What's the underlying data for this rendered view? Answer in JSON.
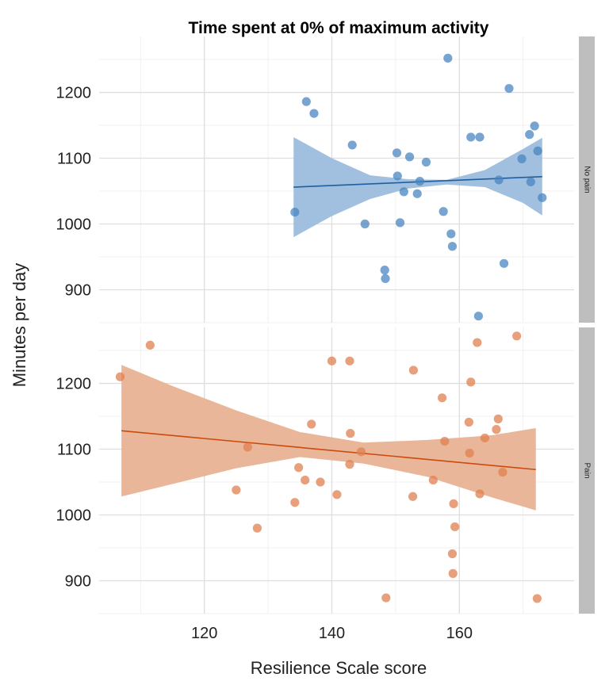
{
  "chart_data": {
    "type": "scatter",
    "title": "Time spent at 0% of maximum activity",
    "xlabel": "Resilience Scale score",
    "ylabel": "Minutes per day",
    "xlim": [
      103.5,
      178
    ],
    "x_ticks": [
      120,
      140,
      160
    ],
    "y_ticks": [
      900,
      1000,
      1100,
      1200
    ],
    "grid": true,
    "facets": [
      {
        "label": "No pain",
        "ylim": [
          850,
          1285
        ],
        "color": "#4a86c0",
        "line_color": "#1f5fa0",
        "ribbon_color": "#9cbcdc",
        "fit": {
          "x0": 134,
          "y0": 1056,
          "x1": 173,
          "y1": 1072
        },
        "band_lower": [
          [
            134,
            980
          ],
          [
            140,
            1012
          ],
          [
            146,
            1038
          ],
          [
            152,
            1054
          ],
          [
            158,
            1060
          ],
          [
            164,
            1056
          ],
          [
            170,
            1032
          ],
          [
            173,
            1013
          ]
        ],
        "band_upper": [
          [
            134,
            1132
          ],
          [
            140,
            1100
          ],
          [
            146,
            1074
          ],
          [
            152,
            1068
          ],
          [
            158,
            1067
          ],
          [
            164,
            1082
          ],
          [
            170,
            1114
          ],
          [
            173,
            1131
          ]
        ],
        "points": [
          [
            134.2,
            1018
          ],
          [
            136,
            1186
          ],
          [
            137.2,
            1168
          ],
          [
            143.2,
            1120
          ],
          [
            145.2,
            1000
          ],
          [
            148.3,
            930
          ],
          [
            148.4,
            917
          ],
          [
            150.2,
            1108
          ],
          [
            150.3,
            1073
          ],
          [
            150.7,
            1002
          ],
          [
            151.3,
            1049
          ],
          [
            152.2,
            1102
          ],
          [
            153.4,
            1046
          ],
          [
            153.8,
            1065
          ],
          [
            154.8,
            1094
          ],
          [
            157.5,
            1019
          ],
          [
            158.2,
            1252
          ],
          [
            158.7,
            985
          ],
          [
            158.9,
            966
          ],
          [
            161.8,
            1132
          ],
          [
            163.2,
            1132
          ],
          [
            163,
            860
          ],
          [
            166.2,
            1067
          ],
          [
            167,
            940
          ],
          [
            167.8,
            1206
          ],
          [
            169.8,
            1099
          ],
          [
            171,
            1136
          ],
          [
            171.2,
            1064
          ],
          [
            171.8,
            1149
          ],
          [
            172.3,
            1111
          ],
          [
            173,
            1040
          ]
        ]
      },
      {
        "label": "Pain",
        "ylim": [
          850,
          1285
        ],
        "color": "#e08050",
        "line_color": "#cc4a0c",
        "ribbon_color": "#e9b294",
        "fit": {
          "x0": 107,
          "y0": 1128,
          "x1": 172,
          "y1": 1069
        },
        "band_lower": [
          [
            107,
            1028
          ],
          [
            115,
            1047
          ],
          [
            125,
            1071
          ],
          [
            135,
            1088
          ],
          [
            145,
            1078
          ],
          [
            155,
            1058
          ],
          [
            165,
            1027
          ],
          [
            172,
            1007
          ]
        ],
        "band_upper": [
          [
            107,
            1228
          ],
          [
            115,
            1196
          ],
          [
            125,
            1159
          ],
          [
            135,
            1126
          ],
          [
            145,
            1110
          ],
          [
            155,
            1114
          ],
          [
            165,
            1121
          ],
          [
            172,
            1132
          ]
        ],
        "points": [
          [
            106.8,
            1210
          ],
          [
            111.5,
            1258
          ],
          [
            125,
            1038
          ],
          [
            126.8,
            1103
          ],
          [
            128.3,
            980
          ],
          [
            134.2,
            1019
          ],
          [
            134.8,
            1072
          ],
          [
            135.8,
            1053
          ],
          [
            136.8,
            1138
          ],
          [
            138.2,
            1050
          ],
          [
            140,
            1234
          ],
          [
            140.8,
            1031
          ],
          [
            142.8,
            1234
          ],
          [
            142.9,
            1124
          ],
          [
            142.8,
            1077
          ],
          [
            144.6,
            1096
          ],
          [
            148.5,
            874
          ],
          [
            152.7,
            1028
          ],
          [
            152.8,
            1220
          ],
          [
            155.9,
            1053
          ],
          [
            157.3,
            1178
          ],
          [
            157.7,
            1112
          ],
          [
            158.9,
            941
          ],
          [
            159,
            911
          ],
          [
            159.1,
            1017
          ],
          [
            159.3,
            982
          ],
          [
            161.5,
            1141
          ],
          [
            161.6,
            1094
          ],
          [
            161.8,
            1202
          ],
          [
            162.8,
            1262
          ],
          [
            163.2,
            1032
          ],
          [
            164,
            1117
          ],
          [
            165.8,
            1130
          ],
          [
            166.1,
            1146
          ],
          [
            166.8,
            1065
          ],
          [
            169,
            1272
          ],
          [
            172.2,
            873
          ]
        ]
      }
    ]
  }
}
